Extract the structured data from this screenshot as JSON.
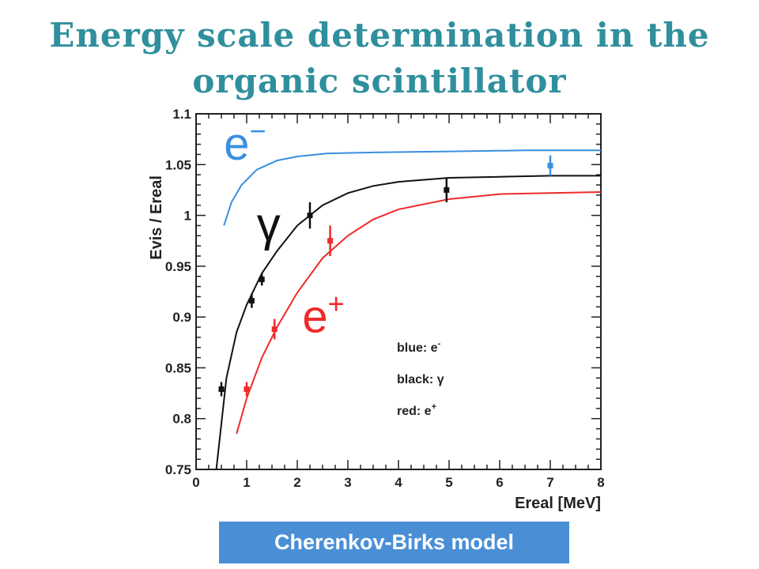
{
  "slide": {
    "title_line1": "Energy scale determination in the",
    "title_line2": "organic scintillator",
    "model_label": "Cherenkov-Birks model"
  },
  "chart_data": {
    "type": "scatter",
    "title": "",
    "xlabel": "Ereal [MeV]",
    "ylabel": "Evis / Ereal",
    "xlim": [
      0,
      8
    ],
    "ylim": [
      0.75,
      1.1
    ],
    "x_ticks": [
      0,
      1,
      2,
      3,
      4,
      5,
      6,
      7,
      8
    ],
    "y_ticks": [
      0.75,
      0.8,
      0.85,
      0.9,
      0.95,
      1,
      1.05,
      1.1
    ],
    "grid": false,
    "legend_position": "bottom-right",
    "legend": [
      {
        "text": "blue: e",
        "sup": "-",
        "color": "#3a8fe0"
      },
      {
        "text": "black: γ",
        "sup": "",
        "color": "#111111"
      },
      {
        "text": "red: e",
        "sup": "+",
        "color": "#ee2a2a"
      }
    ],
    "annotations": [
      {
        "base": "e",
        "sup": "−",
        "color": "#3a8fe0",
        "x": 0.55,
        "y": 1.055
      },
      {
        "base": "γ",
        "sup": "",
        "color": "#111111",
        "x": 1.2,
        "y": 0.975
      },
      {
        "base": "e",
        "sup": "+",
        "color": "#ee2a2a",
        "x": 2.1,
        "y": 0.885
      }
    ],
    "series": [
      {
        "name": "e-",
        "color": "#3a8fe0",
        "curve": {
          "x": [
            0.55,
            0.7,
            0.9,
            1.2,
            1.6,
            2.0,
            2.6,
            3.5,
            5.0,
            6.5,
            8.0
          ],
          "y": [
            0.99,
            1.013,
            1.03,
            1.045,
            1.054,
            1.058,
            1.061,
            1.062,
            1.063,
            1.064,
            1.064
          ]
        },
        "points": [
          {
            "x": 7.0,
            "y": 1.049,
            "err": 0.01
          }
        ]
      },
      {
        "name": "γ",
        "color": "#111111",
        "curve": {
          "x": [
            0.4,
            0.6,
            0.8,
            1.0,
            1.3,
            1.6,
            2.0,
            2.5,
            3.0,
            3.5,
            4.0,
            5.0,
            6.0,
            7.0,
            8.0
          ],
          "y": [
            0.75,
            0.84,
            0.885,
            0.912,
            0.943,
            0.965,
            0.99,
            1.01,
            1.022,
            1.029,
            1.033,
            1.037,
            1.038,
            1.039,
            1.039
          ]
        },
        "points": [
          {
            "x": 0.5,
            "y": 0.829,
            "err": 0.007
          },
          {
            "x": 1.1,
            "y": 0.916,
            "err": 0.007
          },
          {
            "x": 1.3,
            "y": 0.937,
            "err": 0.006
          },
          {
            "x": 2.25,
            "y": 1.0,
            "err": 0.013
          },
          {
            "x": 4.95,
            "y": 1.025,
            "err": 0.012
          }
        ]
      },
      {
        "name": "e+",
        "color": "#ee2a2a",
        "curve": {
          "x": [
            0.8,
            1.0,
            1.3,
            1.6,
            2.0,
            2.5,
            3.0,
            3.5,
            4.0,
            5.0,
            6.0,
            7.0,
            8.0
          ],
          "y": [
            0.785,
            0.82,
            0.86,
            0.89,
            0.924,
            0.958,
            0.98,
            0.996,
            1.006,
            1.016,
            1.021,
            1.022,
            1.023
          ]
        },
        "points": [
          {
            "x": 1.0,
            "y": 0.829,
            "err": 0.007
          },
          {
            "x": 1.55,
            "y": 0.888,
            "err": 0.01
          },
          {
            "x": 2.65,
            "y": 0.975,
            "err": 0.015
          }
        ]
      }
    ]
  }
}
